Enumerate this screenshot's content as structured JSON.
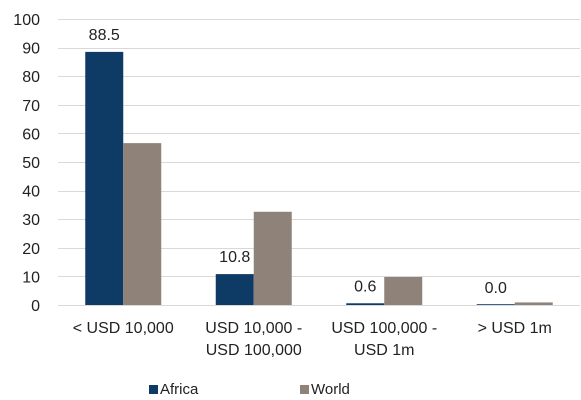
{
  "chart_data": {
    "type": "bar",
    "categories": [
      [
        "< USD 10,000"
      ],
      [
        "USD 10,000 -",
        "USD 100,000"
      ],
      [
        "USD 100,000 -",
        "USD 1m"
      ],
      [
        "> USD 1m"
      ]
    ],
    "series": [
      {
        "name": "Africa",
        "color": "#0e3a66",
        "values": [
          88.5,
          10.8,
          0.6,
          0.0
        ],
        "data_labels": [
          "88.5",
          "10.8",
          "0.6",
          "0.0"
        ]
      },
      {
        "name": "World",
        "color": "#8e8279",
        "values": [
          56.6,
          32.6,
          9.8,
          0.9
        ]
      }
    ],
    "ylim": [
      0,
      100
    ],
    "yticks": [
      0,
      10,
      20,
      30,
      40,
      50,
      60,
      70,
      80,
      90,
      100
    ],
    "ytick_labels": [
      "0",
      "10",
      "20",
      "30",
      "40",
      "50",
      "60",
      "70",
      "80",
      "90",
      "100"
    ],
    "grid": true,
    "legend_position": "bottom"
  }
}
